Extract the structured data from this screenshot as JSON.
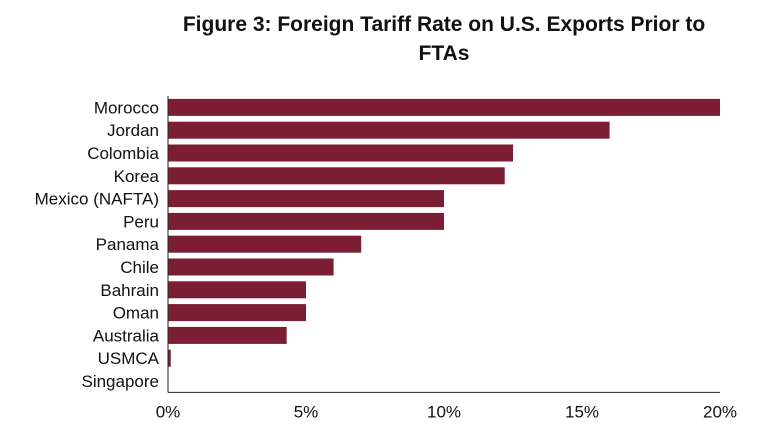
{
  "chart_data": {
    "type": "bar",
    "orientation": "horizontal",
    "title": "Figure 3: Foreign Tariff Rate on U.S. Exports Prior to FTAs",
    "categories": [
      "Morocco",
      "Jordan",
      "Colombia",
      "Korea",
      "Mexico (NAFTA)",
      "Peru",
      "Panama",
      "Chile",
      "Bahrain",
      "Oman",
      "Australia",
      "USMCA",
      "Singapore"
    ],
    "values": [
      20.0,
      16.0,
      12.5,
      12.2,
      10.0,
      10.0,
      7.0,
      6.0,
      5.0,
      5.0,
      4.3,
      0.1,
      0.0
    ],
    "xlim": [
      0,
      20
    ],
    "xticks": [
      "0%",
      "5%",
      "10%",
      "15%",
      "20%"
    ],
    "xtick_values": [
      0,
      5,
      10,
      15,
      20
    ],
    "grid": false,
    "legend": "none",
    "bar_color": "#7b1e34"
  }
}
